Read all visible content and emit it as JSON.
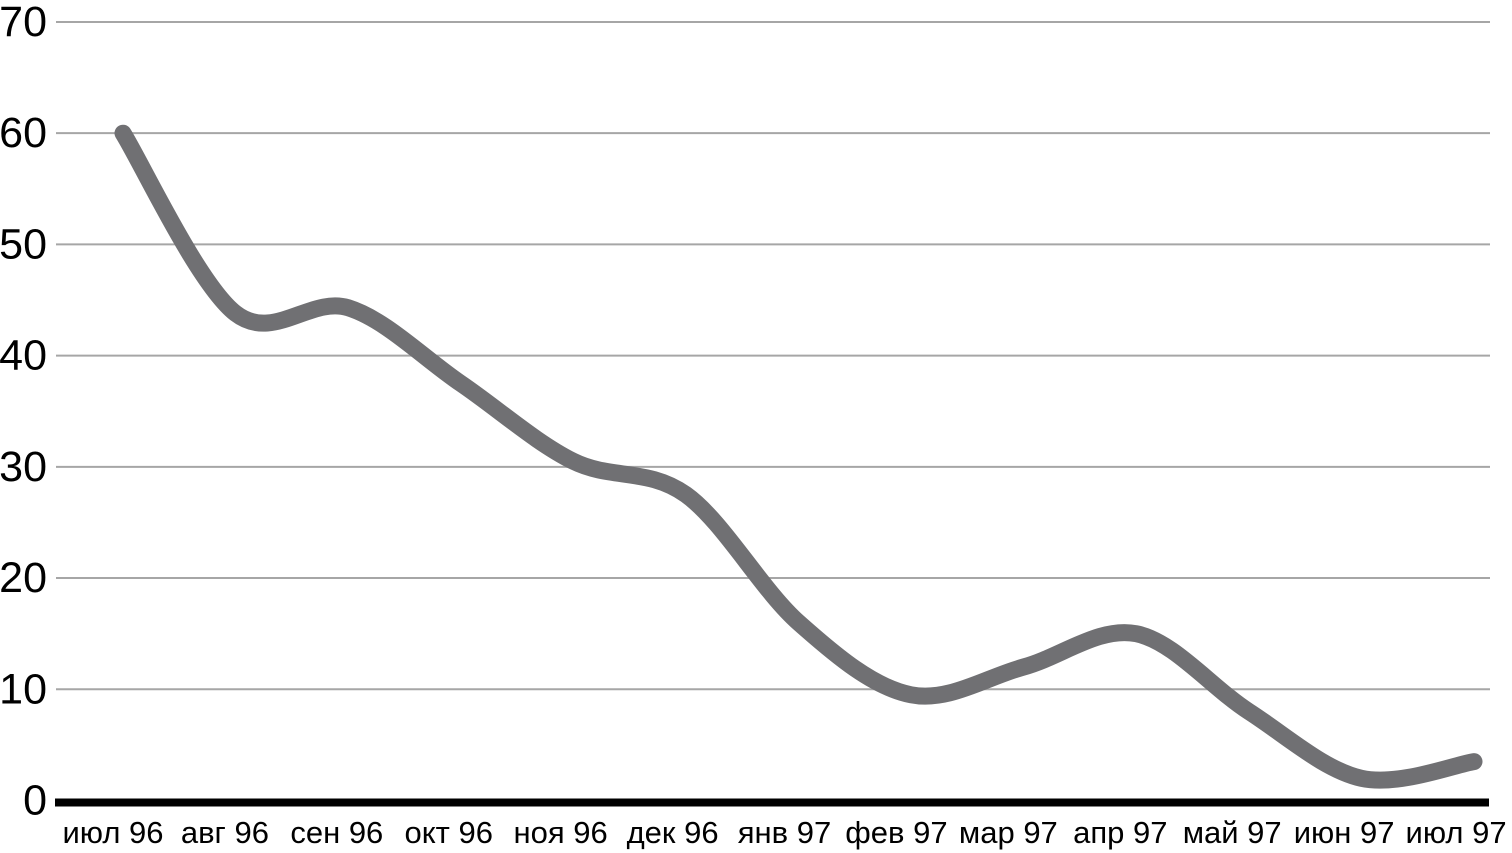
{
  "chart_data": {
    "type": "line",
    "categories": [
      "июл 96",
      "авг 96",
      "сен 96",
      "окт 96",
      "ноя 96",
      "дек 96",
      "янв 97",
      "фев 97",
      "мар 97",
      "апр 97",
      "май 97",
      "июн 97",
      "июл 97"
    ],
    "values": [
      60,
      43.8,
      44.3,
      37.5,
      30.5,
      27.5,
      16,
      9.5,
      12,
      15,
      8,
      2,
      3.5
    ],
    "yticks": [
      0,
      10,
      20,
      30,
      40,
      50,
      60,
      70
    ],
    "ylim": [
      0,
      70
    ],
    "grid": "horizontal",
    "legend": "none",
    "smooth_line": true,
    "line_color": "#707073",
    "gridline_color": "#a6a6a6",
    "axis_color": "#000000",
    "label_color": "#000000",
    "background_color": "#ffffff"
  }
}
